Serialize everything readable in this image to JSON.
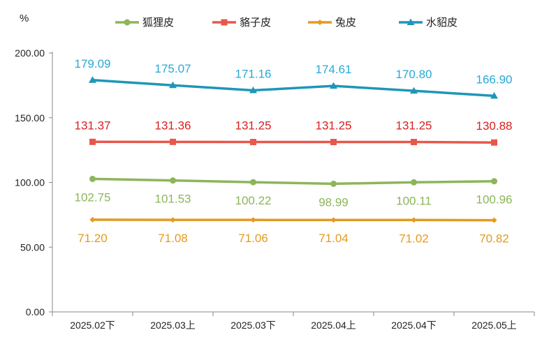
{
  "chart_data": {
    "type": "line",
    "ylabel": "%",
    "ylim": [
      0,
      200
    ],
    "yticks": [
      "0.00",
      "50.00",
      "100.00",
      "150.00",
      "200.00"
    ],
    "categories": [
      "2025.02下",
      "2025.03上",
      "2025.03下",
      "2025.04上",
      "2025.04下",
      "2025.05上"
    ],
    "legend_position": "top",
    "series": [
      {
        "name": "狐狸皮",
        "color": "#8db55a",
        "marker": "circle",
        "label_position": "below",
        "values": [
          102.75,
          101.53,
          100.22,
          98.99,
          100.11,
          100.96
        ],
        "labels": [
          "102.75",
          "101.53",
          "100.22",
          "98.99",
          "100.11",
          "100.96"
        ]
      },
      {
        "name": "貉子皮",
        "color": "#e8574c",
        "label_color": "#d92020",
        "marker": "square",
        "label_position": "above",
        "values": [
          131.37,
          131.36,
          131.25,
          131.25,
          131.25,
          130.88
        ],
        "labels": [
          "131.37",
          "131.36",
          "131.25",
          "131.25",
          "131.25",
          "130.88"
        ]
      },
      {
        "name": "兔皮",
        "color": "#e39a1f",
        "marker": "diamond",
        "label_position": "below",
        "values": [
          71.2,
          71.08,
          71.06,
          71.04,
          71.02,
          70.82
        ],
        "labels": [
          "71.20",
          "71.08",
          "71.06",
          "71.04",
          "71.02",
          "70.82"
        ]
      },
      {
        "name": "水貂皮",
        "color": "#1f96b8",
        "label_color": "#2aa9d6",
        "marker": "triangle",
        "label_position": "above",
        "values": [
          179.09,
          175.07,
          171.16,
          174.61,
          170.8,
          166.9
        ],
        "labels": [
          "179.09",
          "175.07",
          "171.16",
          "174.61",
          "170.80",
          "166.90"
        ]
      }
    ]
  }
}
